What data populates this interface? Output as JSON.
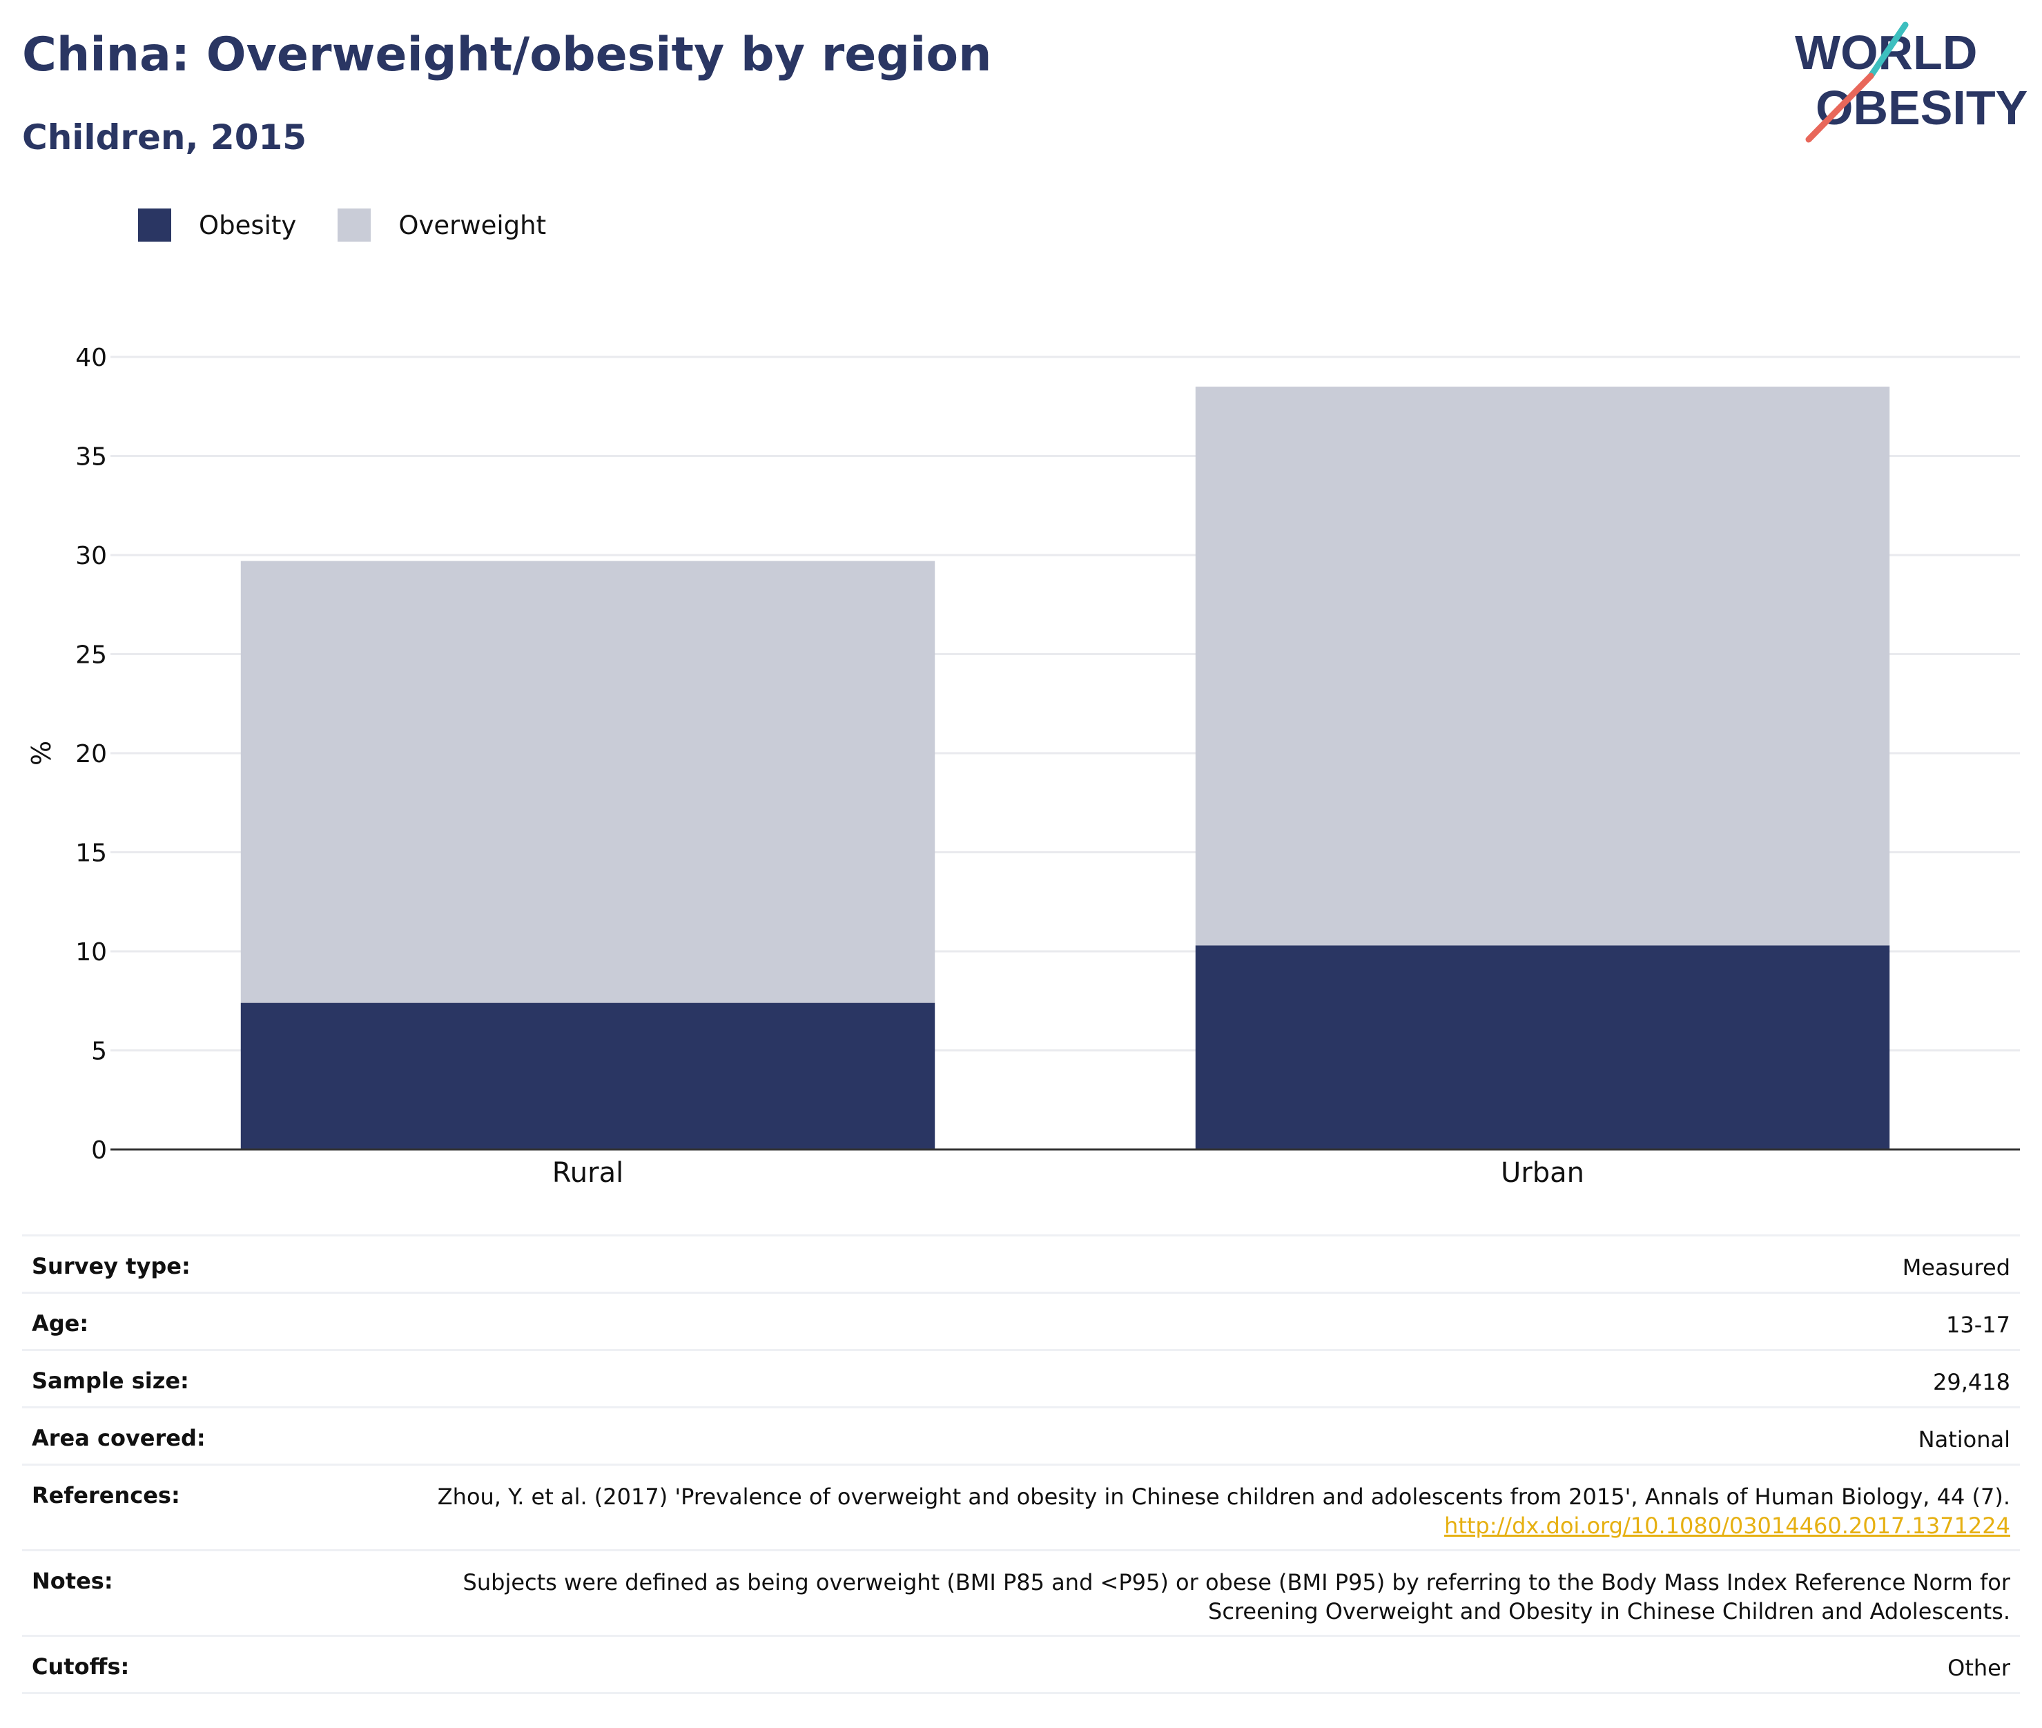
{
  "header": {
    "title": "China: Overweight/obesity by region",
    "subtitle": "Children, 2015",
    "logo_line1": "WORLD",
    "logo_line2": "OBESITY"
  },
  "colors": {
    "obesity": "#2a3663",
    "overweight": "#c9ccd7",
    "title": "#2a3663",
    "grid": "#e9eaee",
    "axis": "#333333",
    "link": "#e6b012",
    "logo_teal": "#3dbfbf",
    "logo_coral": "#e8675a"
  },
  "chart_data": {
    "type": "bar",
    "stacked": true,
    "categories": [
      "Rural",
      "Urban"
    ],
    "series": [
      {
        "name": "Obesity",
        "values": [
          7.4,
          10.3
        ]
      },
      {
        "name": "Overweight",
        "values": [
          22.3,
          28.2
        ]
      }
    ],
    "totals": [
      29.7,
      38.5
    ],
    "ylabel": "%",
    "xlabel": "",
    "ylim": [
      0,
      40
    ],
    "yticks": [
      0,
      5,
      10,
      15,
      20,
      25,
      30,
      35,
      40
    ],
    "grid": true,
    "legend_position": "top-left"
  },
  "meta": {
    "rows": [
      {
        "label": "Survey type:",
        "value": "Measured"
      },
      {
        "label": "Age:",
        "value": "13-17"
      },
      {
        "label": "Sample size:",
        "value": "29,418"
      },
      {
        "label": "Area covered:",
        "value": "National"
      },
      {
        "label": "References:",
        "value": "Zhou, Y. et al. (2017) 'Prevalence of overweight and obesity in Chinese children and adolescents from 2015', Annals of Human Biology, 44 (7).",
        "link": "http://dx.doi.org/10.1080/03014460.2017.1371224"
      },
      {
        "label": "Notes:",
        "value": "Subjects were defined as being overweight (BMI P85 and <P95) or obese (BMI P95) by referring to the Body Mass Index Reference Norm for Screening Overweight and Obesity in Chinese Children and Adolescents."
      },
      {
        "label": "Cutoffs:",
        "value": "Other"
      }
    ]
  }
}
